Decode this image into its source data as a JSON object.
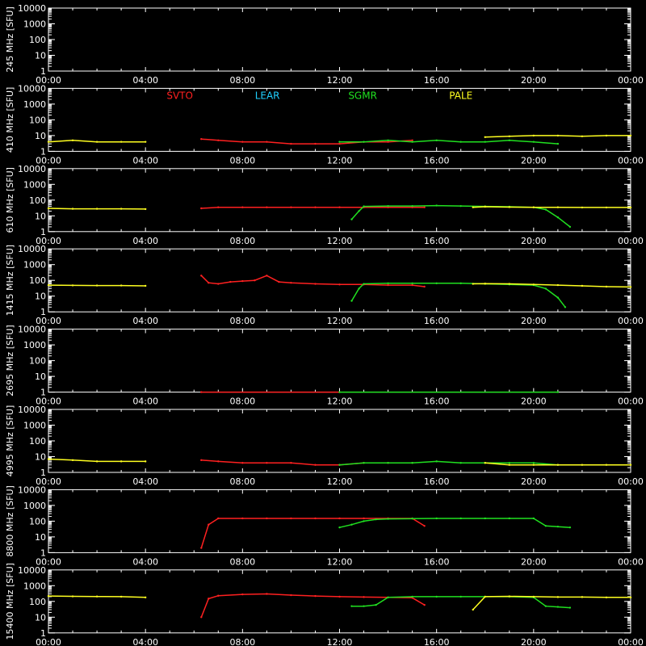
{
  "chart_data": {
    "type": "line",
    "background_color": "#000000",
    "axis_color": "#ffffff",
    "ylabel_unit": "[SFU]",
    "x_ticks": [
      "00:00",
      "04:00",
      "08:00",
      "12:00",
      "16:00",
      "20:00",
      "00:00"
    ],
    "x_range_hours": [
      0,
      24
    ],
    "y_scale": "log",
    "y_range": [
      1,
      10000
    ],
    "y_ticks": [
      "1",
      "10",
      "100",
      "1000",
      "10000"
    ],
    "station_legend": [
      {
        "name": "SVTO",
        "color": "#ff2020"
      },
      {
        "name": "LEAR",
        "color": "#20d0ff"
      },
      {
        "name": "SGMR",
        "color": "#20e020"
      },
      {
        "name": "PALE",
        "color": "#ffff20"
      }
    ],
    "panels": [
      {
        "freq_label": "245 MHz",
        "series": []
      },
      {
        "freq_label": "410 MHz",
        "show_legend": true,
        "series": [
          {
            "station": "PALE",
            "color": "#ffff20",
            "x": [
              0.0,
              1.0,
              2.0,
              3.0,
              4.0
            ],
            "y": [
              4,
              5,
              4,
              4,
              4
            ]
          },
          {
            "station": "SVTO",
            "color": "#ff2020",
            "x": [
              6.3,
              7.0,
              8.0,
              9.0,
              10.0,
              11.0,
              12.0,
              13.0,
              14.0,
              15.0
            ],
            "y": [
              6,
              5,
              4,
              4,
              3,
              3,
              3,
              4,
              4,
              5
            ]
          },
          {
            "station": "SGMR",
            "color": "#20e020",
            "x": [
              12.0,
              13.0,
              14.0,
              15.0,
              16.0,
              17.0,
              18.0,
              19.0,
              20.0,
              21.0
            ],
            "y": [
              4,
              4,
              5,
              4,
              5,
              4,
              4,
              5,
              4,
              3
            ]
          },
          {
            "station": "PALE",
            "color": "#ffff20",
            "x": [
              18.0,
              19.0,
              20.0,
              21.0,
              22.0,
              23.0,
              24.0
            ],
            "y": [
              8,
              9,
              10,
              10,
              9,
              10,
              10
            ]
          }
        ]
      },
      {
        "freq_label": "610 MHz",
        "series": [
          {
            "station": "PALE",
            "color": "#ffff20",
            "x": [
              0.0,
              1.0,
              2.0,
              3.0,
              4.0
            ],
            "y": [
              30,
              28,
              28,
              28,
              27
            ]
          },
          {
            "station": "SVTO",
            "color": "#ff2020",
            "x": [
              6.3,
              7.0,
              8.0,
              9.0,
              10.0,
              11.0,
              12.0,
              13.0,
              14.0,
              15.0,
              15.5
            ],
            "y": [
              30,
              35,
              35,
              35,
              35,
              35,
              35,
              35,
              35,
              35,
              35
            ]
          },
          {
            "station": "SGMR",
            "color": "#20e020",
            "x": [
              12.5,
              12.8,
              13.0,
              14.0,
              15.0,
              16.0,
              17.0,
              18.0,
              19.0,
              20.0,
              20.5,
              21.0,
              21.5
            ],
            "y": [
              6,
              20,
              40,
              42,
              42,
              45,
              42,
              40,
              38,
              35,
              25,
              8,
              2
            ]
          },
          {
            "station": "PALE",
            "color": "#ffff20",
            "x": [
              17.5,
              18.0,
              19.0,
              20.0,
              21.0,
              22.0,
              23.0,
              24.0
            ],
            "y": [
              35,
              38,
              36,
              35,
              35,
              34,
              34,
              34
            ]
          }
        ]
      },
      {
        "freq_label": "1415 MHz",
        "series": [
          {
            "station": "PALE",
            "color": "#ffff20",
            "x": [
              0.0,
              1.0,
              2.0,
              3.0,
              4.0
            ],
            "y": [
              50,
              48,
              47,
              47,
              45
            ]
          },
          {
            "station": "SVTO",
            "color": "#ff2020",
            "x": [
              6.3,
              6.6,
              7.0,
              7.5,
              8.0,
              8.5,
              9.0,
              9.5,
              10.0,
              11.0,
              12.0,
              13.0,
              14.0,
              15.0,
              15.5
            ],
            "y": [
              200,
              70,
              60,
              80,
              90,
              100,
              200,
              80,
              70,
              60,
              55,
              55,
              50,
              50,
              40
            ]
          },
          {
            "station": "SGMR",
            "color": "#20e020",
            "x": [
              12.5,
              12.8,
              13.0,
              14.0,
              15.0,
              16.0,
              17.0,
              18.0,
              19.0,
              20.0,
              20.5,
              21.0,
              21.3
            ],
            "y": [
              5,
              30,
              60,
              65,
              65,
              65,
              65,
              60,
              55,
              50,
              30,
              8,
              2
            ]
          },
          {
            "station": "PALE",
            "color": "#ffff20",
            "x": [
              17.5,
              18.0,
              19.0,
              20.0,
              21.0,
              22.0,
              23.0,
              24.0
            ],
            "y": [
              60,
              62,
              60,
              55,
              50,
              45,
              40,
              38
            ]
          }
        ]
      },
      {
        "freq_label": "2695 MHz",
        "series": [
          {
            "station": "SVTO",
            "color": "#ff2020",
            "x": [
              6.3,
              12.0
            ],
            "y": [
              1,
              1
            ]
          },
          {
            "station": "SGMR",
            "color": "#20e020",
            "x": [
              12.0,
              21.0
            ],
            "y": [
              1,
              1
            ]
          }
        ]
      },
      {
        "freq_label": "4995 MHz",
        "series": [
          {
            "station": "PALE",
            "color": "#ffff20",
            "x": [
              0.0,
              1.0,
              2.0,
              3.0,
              4.0
            ],
            "y": [
              7,
              6,
              5,
              5,
              5
            ]
          },
          {
            "station": "SVTO",
            "color": "#ff2020",
            "x": [
              6.3,
              7.0,
              8.0,
              9.0,
              10.0,
              11.0,
              12.0,
              13.0,
              14.0,
              15.0
            ],
            "y": [
              6,
              5,
              4,
              4,
              4,
              3,
              3,
              4,
              4,
              4
            ]
          },
          {
            "station": "SGMR",
            "color": "#20e020",
            "x": [
              12.0,
              13.0,
              14.0,
              15.0,
              16.0,
              17.0,
              18.0,
              19.0,
              20.0,
              21.0
            ],
            "y": [
              3,
              4,
              4,
              4,
              5,
              4,
              4,
              4,
              4,
              3
            ]
          },
          {
            "station": "PALE",
            "color": "#ffff20",
            "x": [
              18.0,
              19.0,
              20.0,
              21.0,
              22.0,
              23.0,
              24.0
            ],
            "y": [
              4,
              3,
              3,
              3,
              3,
              3,
              3
            ]
          }
        ]
      },
      {
        "freq_label": "8800 MHz",
        "series": [
          {
            "station": "SVTO",
            "color": "#ff2020",
            "x": [
              6.3,
              6.6,
              7.0,
              8.0,
              9.0,
              10.0,
              11.0,
              12.0,
              13.0,
              14.0,
              15.0,
              15.5
            ],
            "y": [
              2,
              60,
              150,
              150,
              150,
              150,
              150,
              150,
              150,
              150,
              150,
              50
            ]
          },
          {
            "station": "SGMR",
            "color": "#20e020",
            "x": [
              12.0,
              12.5,
              13.0,
              13.5,
              14.0,
              15.0,
              16.0,
              17.0,
              18.0,
              19.0,
              20.0,
              20.5,
              21.0,
              21.5
            ],
            "y": [
              40,
              60,
              100,
              130,
              140,
              145,
              150,
              150,
              150,
              150,
              150,
              50,
              45,
              40
            ]
          }
        ]
      },
      {
        "freq_label": "15400 MHz",
        "series": [
          {
            "station": "PALE",
            "color": "#ffff20",
            "x": [
              0.0,
              1.0,
              2.0,
              3.0,
              4.0
            ],
            "y": [
              220,
              210,
              205,
              200,
              180
            ]
          },
          {
            "station": "SVTO",
            "color": "#ff2020",
            "x": [
              6.3,
              6.6,
              7.0,
              8.0,
              9.0,
              10.0,
              11.0,
              12.0,
              13.0,
              14.0,
              15.0,
              15.5
            ],
            "y": [
              10,
              150,
              230,
              280,
              300,
              250,
              220,
              200,
              190,
              180,
              170,
              60
            ]
          },
          {
            "station": "SGMR",
            "color": "#20e020",
            "x": [
              12.5,
              13.0,
              13.5,
              14.0,
              15.0,
              16.0,
              17.0,
              18.0,
              19.0,
              20.0,
              20.5,
              21.0,
              21.5
            ],
            "y": [
              50,
              50,
              60,
              180,
              200,
              200,
              200,
              200,
              200,
              180,
              50,
              45,
              40
            ]
          },
          {
            "station": "PALE",
            "color": "#ffff20",
            "x": [
              17.5,
              18.0,
              19.0,
              20.0,
              21.0,
              22.0,
              23.0,
              24.0
            ],
            "y": [
              30,
              200,
              210,
              200,
              190,
              190,
              180,
              180
            ]
          }
        ]
      }
    ]
  }
}
